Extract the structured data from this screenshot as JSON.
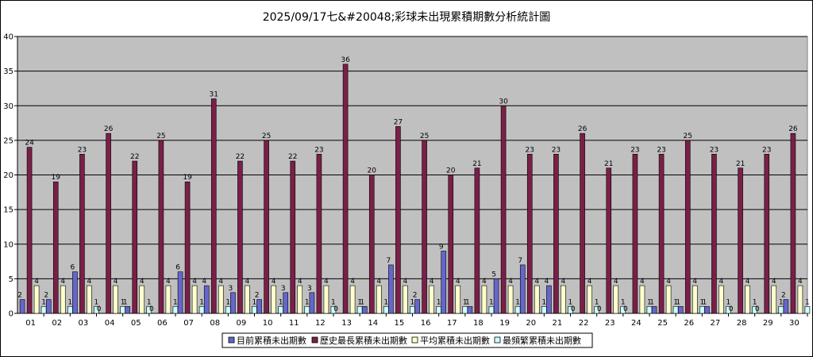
{
  "chart_data": {
    "type": "bar",
    "title": "2025/09/17七&#20048;彩球未出現累積期數分析統計圖",
    "xlabel": "",
    "ylabel": "",
    "ylim": [
      0,
      40
    ],
    "yticks": [
      0,
      5,
      10,
      15,
      20,
      25,
      30,
      35,
      40
    ],
    "grid": true,
    "legend_position": "bottom",
    "categories": [
      "01",
      "02",
      "03",
      "04",
      "05",
      "06",
      "07",
      "08",
      "09",
      "10",
      "11",
      "12",
      "13",
      "14",
      "15",
      "16",
      "17",
      "18",
      "19",
      "20",
      "21",
      "22",
      "23",
      "24",
      "25",
      "26",
      "27",
      "28",
      "29",
      "30"
    ],
    "series": [
      {
        "name": "目前累積未出期數",
        "color": "#6666cc",
        "values": [
          2,
          2,
          6,
          0,
          1,
          0,
          6,
          4,
          3,
          2,
          3,
          3,
          0,
          1,
          7,
          2,
          9,
          1,
          5,
          7,
          4,
          0,
          0,
          0,
          1,
          1,
          1,
          0,
          0,
          2
        ]
      },
      {
        "name": "歷史最長累積未出期數",
        "color": "#7a1f48",
        "values": [
          24,
          19,
          23,
          26,
          22,
          25,
          19,
          31,
          22,
          25,
          22,
          23,
          36,
          20,
          27,
          25,
          20,
          21,
          30,
          23,
          23,
          26,
          21,
          23,
          23,
          25,
          23,
          21,
          23,
          26
        ]
      },
      {
        "name": "平均累積未出期數",
        "color": "#ffffcc",
        "values": [
          4,
          4,
          4,
          4,
          4,
          4,
          4,
          4,
          4,
          4,
          4,
          4,
          4,
          4,
          4,
          4,
          4,
          4,
          4,
          4,
          4,
          4,
          4,
          4,
          4,
          4,
          4,
          4,
          4,
          4
        ]
      },
      {
        "name": "最頻繁累積未出期數",
        "color": "#ccffff",
        "values": [
          1,
          1,
          1,
          1,
          1,
          1,
          1,
          1,
          1,
          1,
          1,
          1,
          1,
          1,
          1,
          1,
          1,
          1,
          1,
          1,
          1,
          1,
          1,
          1,
          1,
          1,
          1,
          1,
          1,
          1
        ]
      }
    ],
    "plot_background": "#c0c0c0",
    "text_color": "#000000"
  }
}
